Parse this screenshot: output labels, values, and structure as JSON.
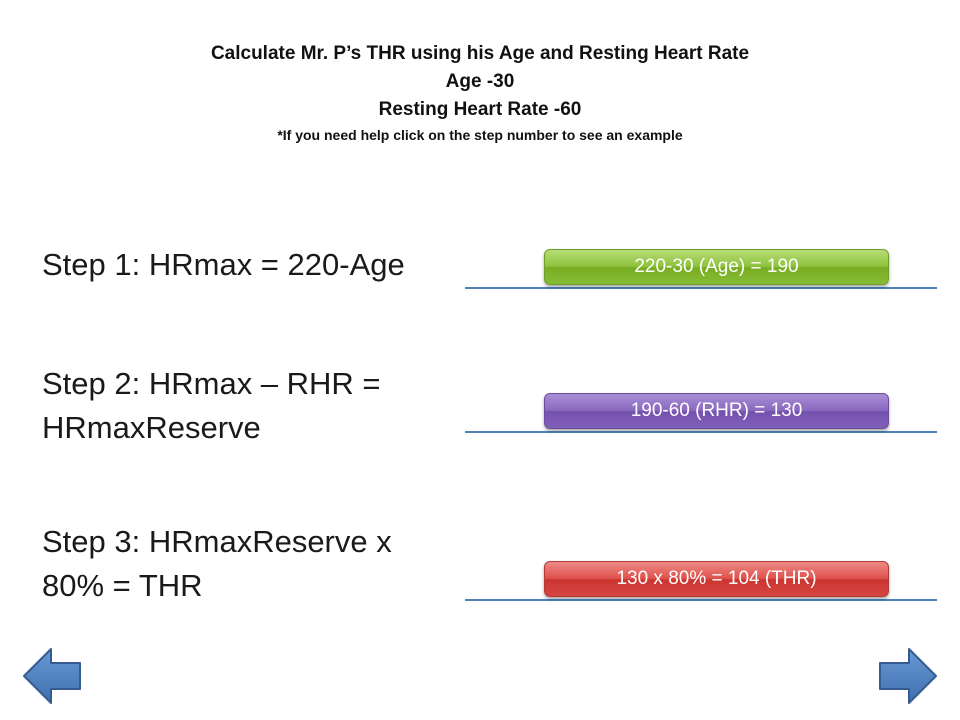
{
  "header": {
    "title": "Calculate Mr. P’s THR using his Age and Resting Heart Rate",
    "age": "Age -30",
    "rhr": "Resting Heart Rate -60",
    "note": "*If you need help click on the step number to see an example"
  },
  "steps": [
    {
      "line1": "Step 1: HRmax = 220-Age",
      "answer": "220-30 (Age) = 190",
      "color": "#8fc23e"
    },
    {
      "line1": "Step 2: HRmax – RHR =",
      "line2": "HRmaxReserve",
      "answer": "190-60 (RHR) = 130",
      "color": "#8a69c0"
    },
    {
      "line1": "Step 3: HRmaxReserve x",
      "line2": "80% = THR",
      "answer": "130 x 80% = 104 (THR)",
      "color": "#de524d"
    }
  ],
  "navigation": {
    "prev_icon": "left-arrow-icon",
    "next_icon": "right-arrow-icon",
    "arrow_color": "#4f81bd"
  }
}
